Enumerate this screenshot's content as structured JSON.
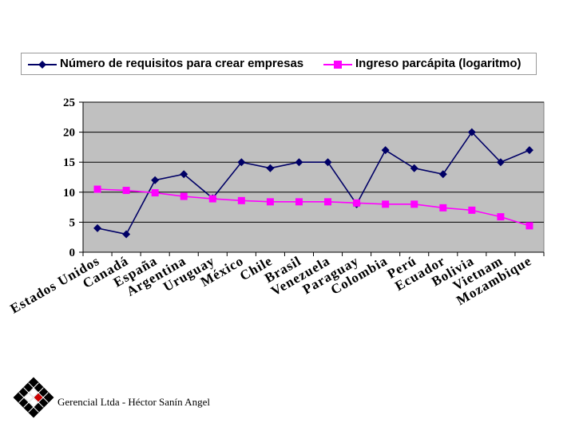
{
  "chart_data": {
    "type": "line",
    "categories": [
      "Estados Unidos",
      "Canadá",
      "España",
      "Argentina",
      "Uruguay",
      "México",
      "Chile",
      "Brasil",
      "Venezuela",
      "Paraguay",
      "Colombia",
      "Perú",
      "Ecuador",
      "Bolivia",
      "Vietnam",
      "Mozambique"
    ],
    "series": [
      {
        "name": "Número de requisitos para crear empresas",
        "color": "#000066",
        "marker": "diamond",
        "values": [
          4,
          3,
          12,
          13,
          9,
          15,
          14,
          15,
          15,
          8,
          17,
          14,
          13,
          20,
          15,
          17
        ]
      },
      {
        "name": "Ingreso parcápita (logaritmo)",
        "color": "#ff00ff",
        "marker": "square",
        "values": [
          10.5,
          10.3,
          9.9,
          9.3,
          8.9,
          8.6,
          8.4,
          8.4,
          8.4,
          8.2,
          8.0,
          8.0,
          7.4,
          7.0,
          5.9,
          4.4
        ]
      }
    ],
    "yticks": [
      0,
      5,
      10,
      15,
      20,
      25
    ],
    "ylim": [
      0,
      25
    ],
    "plot_background": "#c0c0c0",
    "grid": true,
    "legend_position": "top"
  },
  "footer": {
    "credit": "Gerencial Ltda - Héctor Sanín Angel"
  }
}
